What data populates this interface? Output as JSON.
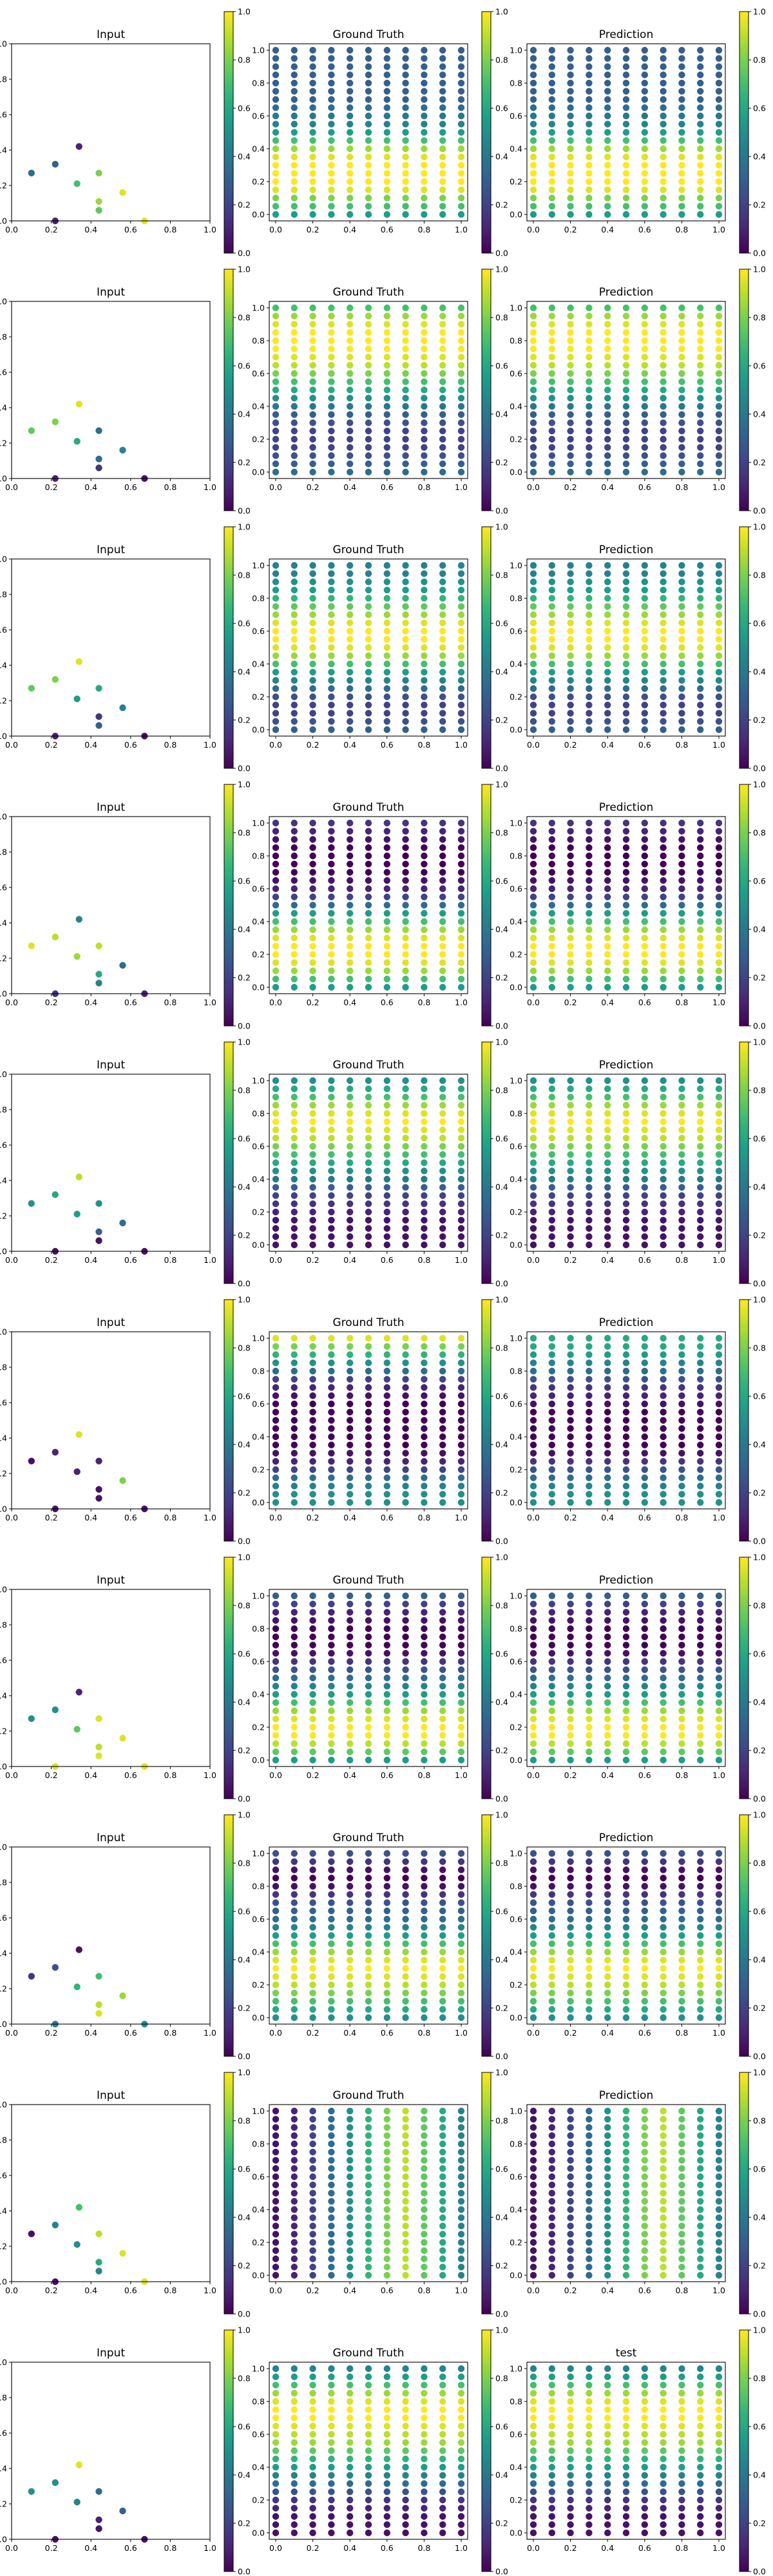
{
  "figure": {
    "rows": 10,
    "columns": [
      "Input",
      "Ground Truth",
      "Prediction"
    ],
    "colormap": "viridis",
    "colorbar_ticks": [
      "0.0",
      "0.2",
      "0.4",
      "0.6",
      "0.8",
      "1.0"
    ],
    "axis_ticks": [
      "0.0",
      "0.2",
      "0.4",
      "0.6",
      "0.8",
      "1.0"
    ],
    "grid_x": [
      0.0,
      0.1,
      0.2,
      0.3,
      0.4,
      0.5,
      0.6,
      0.7,
      0.8,
      0.9,
      1.0
    ],
    "grid_y": [
      0.0,
      0.05,
      0.1,
      0.15,
      0.2,
      0.25,
      0.3,
      0.35,
      0.4,
      0.45,
      0.5,
      0.55,
      0.6,
      0.65,
      0.7,
      0.75,
      0.8,
      0.85,
      0.9,
      0.95,
      1.0
    ],
    "input_points_xy": [
      [
        0.1,
        0.27
      ],
      [
        0.22,
        0.32
      ],
      [
        0.34,
        0.42
      ],
      [
        0.22,
        0.0
      ],
      [
        0.33,
        0.21
      ],
      [
        0.44,
        0.27
      ],
      [
        0.44,
        0.11
      ],
      [
        0.44,
        0.06
      ],
      [
        0.56,
        0.16
      ],
      [
        0.67,
        0.0
      ]
    ]
  },
  "chart_data": [
    {
      "type": "scatter",
      "row": 1,
      "title": "Input",
      "input_values": [
        0.35,
        0.3,
        0.1,
        0.1,
        0.7,
        0.8,
        0.85,
        0.75,
        0.95,
        0.95
      ],
      "xlim": [
        0,
        1
      ],
      "ylim": [
        0,
        1
      ],
      "colorbar": [
        0,
        1
      ]
    },
    {
      "type": "scatter",
      "row": 1,
      "title": "Ground Truth",
      "row_values": [
        0.55,
        0.7,
        0.8,
        0.95,
        1,
        1,
        1,
        0.95,
        0.85,
        0.7,
        0.55,
        0.45,
        0.4,
        0.35,
        0.3,
        0.3,
        0.3,
        0.3,
        0.3,
        0.3,
        0.3
      ],
      "xlim": [
        0,
        1
      ],
      "ylim": [
        0,
        1
      ],
      "colorbar": [
        0,
        1
      ]
    },
    {
      "type": "scatter",
      "row": 1,
      "title": "Prediction",
      "row_values": [
        0.55,
        0.7,
        0.8,
        0.95,
        1,
        1,
        1,
        0.95,
        0.85,
        0.7,
        0.55,
        0.45,
        0.4,
        0.35,
        0.3,
        0.3,
        0.3,
        0.3,
        0.3,
        0.3,
        0.3
      ],
      "xlim": [
        0,
        1
      ],
      "ylim": [
        0,
        1
      ],
      "colorbar": [
        0,
        1
      ]
    },
    {
      "type": "scatter",
      "row": 2,
      "title": "Input",
      "input_values": [
        0.75,
        0.8,
        0.95,
        0.1,
        0.6,
        0.35,
        0.35,
        0.15,
        0.45,
        0.05
      ],
      "xlim": [
        0,
        1
      ],
      "ylim": [
        0,
        1
      ],
      "colorbar": [
        0,
        1
      ]
    },
    {
      "type": "scatter",
      "row": 2,
      "title": "Ground Truth",
      "row_values": [
        0.35,
        0.3,
        0.25,
        0.2,
        0.2,
        0.2,
        0.25,
        0.3,
        0.4,
        0.5,
        0.6,
        0.7,
        0.8,
        0.9,
        0.95,
        1,
        1,
        1,
        0.95,
        0.85,
        0.7
      ],
      "xlim": [
        0,
        1
      ],
      "ylim": [
        0,
        1
      ],
      "colorbar": [
        0,
        1
      ]
    },
    {
      "type": "scatter",
      "row": 2,
      "title": "Prediction",
      "row_values": [
        0.35,
        0.3,
        0.25,
        0.2,
        0.2,
        0.2,
        0.25,
        0.3,
        0.4,
        0.5,
        0.6,
        0.7,
        0.8,
        0.9,
        0.95,
        1,
        1,
        1,
        0.95,
        0.85,
        0.7
      ],
      "xlim": [
        0,
        1
      ],
      "ylim": [
        0,
        1
      ],
      "colorbar": [
        0,
        1
      ]
    },
    {
      "type": "scatter",
      "row": 3,
      "title": "Input",
      "input_values": [
        0.75,
        0.8,
        0.95,
        0.1,
        0.55,
        0.6,
        0.15,
        0.3,
        0.45,
        0.05
      ],
      "xlim": [
        0,
        1
      ],
      "ylim": [
        0,
        1
      ],
      "colorbar": [
        0,
        1
      ]
    },
    {
      "type": "scatter",
      "row": 3,
      "title": "Ground Truth",
      "row_values": [
        0.3,
        0.25,
        0.2,
        0.2,
        0.25,
        0.35,
        0.45,
        0.55,
        0.7,
        0.85,
        0.95,
        1,
        1,
        0.95,
        0.85,
        0.75,
        0.65,
        0.55,
        0.5,
        0.45,
        0.45
      ],
      "xlim": [
        0,
        1
      ],
      "ylim": [
        0,
        1
      ],
      "colorbar": [
        0,
        1
      ]
    },
    {
      "type": "scatter",
      "row": 3,
      "title": "Prediction",
      "row_values": [
        0.3,
        0.25,
        0.2,
        0.2,
        0.25,
        0.35,
        0.45,
        0.55,
        0.7,
        0.85,
        0.95,
        1,
        1,
        0.95,
        0.85,
        0.75,
        0.65,
        0.55,
        0.5,
        0.45,
        0.45
      ],
      "xlim": [
        0,
        1
      ],
      "ylim": [
        0,
        1
      ],
      "colorbar": [
        0,
        1
      ]
    },
    {
      "type": "scatter",
      "row": 4,
      "title": "Input",
      "input_values": [
        0.95,
        0.9,
        0.45,
        0.15,
        0.85,
        0.9,
        0.6,
        0.45,
        0.35,
        0.1
      ],
      "xlim": [
        0,
        1
      ],
      "ylim": [
        0,
        1
      ],
      "colorbar": [
        0,
        1
      ]
    },
    {
      "type": "scatter",
      "row": 4,
      "title": "Ground Truth",
      "row_values": [
        0.55,
        0.7,
        0.85,
        0.95,
        1,
        1,
        0.95,
        0.85,
        0.7,
        0.55,
        0.35,
        0.2,
        0.1,
        0.05,
        0,
        0,
        0,
        0,
        0.05,
        0.1,
        0.15
      ],
      "xlim": [
        0,
        1
      ],
      "ylim": [
        0,
        1
      ],
      "colorbar": [
        0,
        1
      ]
    },
    {
      "type": "scatter",
      "row": 4,
      "title": "Prediction",
      "row_values": [
        0.55,
        0.7,
        0.85,
        0.95,
        1,
        1,
        0.95,
        0.85,
        0.7,
        0.55,
        0.35,
        0.2,
        0.1,
        0.05,
        0,
        0,
        0,
        0,
        0.05,
        0.1,
        0.15
      ],
      "xlim": [
        0,
        1
      ],
      "ylim": [
        0,
        1
      ],
      "colorbar": [
        0,
        1
      ]
    },
    {
      "type": "scatter",
      "row": 5,
      "title": "Input",
      "input_values": [
        0.5,
        0.6,
        0.9,
        0.05,
        0.55,
        0.5,
        0.3,
        0.05,
        0.35,
        0.05
      ],
      "xlim": [
        0,
        1
      ],
      "ylim": [
        0,
        1
      ],
      "colorbar": [
        0,
        1
      ]
    },
    {
      "type": "scatter",
      "row": 5,
      "title": "Ground Truth",
      "row_values": [
        0.05,
        0.05,
        0.05,
        0.05,
        0.1,
        0.15,
        0.2,
        0.3,
        0.4,
        0.5,
        0.6,
        0.7,
        0.8,
        0.9,
        0.95,
        1,
        0.95,
        0.85,
        0.7,
        0.6,
        0.5
      ],
      "xlim": [
        0,
        1
      ],
      "ylim": [
        0,
        1
      ],
      "colorbar": [
        0,
        1
      ]
    },
    {
      "type": "scatter",
      "row": 5,
      "title": "Prediction",
      "row_values": [
        0.05,
        0.05,
        0.05,
        0.05,
        0.1,
        0.15,
        0.2,
        0.3,
        0.4,
        0.5,
        0.6,
        0.7,
        0.8,
        0.9,
        0.95,
        1,
        0.95,
        0.85,
        0.7,
        0.6,
        0.5
      ],
      "xlim": [
        0,
        1
      ],
      "ylim": [
        0,
        1
      ],
      "colorbar": [
        0,
        1
      ]
    },
    {
      "type": "scatter",
      "row": 6,
      "title": "Input",
      "input_values": [
        0.05,
        0.1,
        0.95,
        0.05,
        0.1,
        0.1,
        0.05,
        0.05,
        0.8,
        0.05
      ],
      "xlim": [
        0,
        1
      ],
      "ylim": [
        0,
        1
      ],
      "colorbar": [
        0,
        1
      ]
    },
    {
      "type": "scatter",
      "row": 6,
      "title": "Ground Truth",
      "row_values": [
        0.5,
        0.5,
        0.45,
        0.35,
        0.2,
        0.1,
        0.05,
        0,
        0,
        0,
        0,
        0,
        0,
        0.05,
        0.1,
        0.2,
        0.35,
        0.5,
        0.65,
        0.8,
        0.95
      ],
      "xlim": [
        0,
        1
      ],
      "ylim": [
        0,
        1
      ],
      "colorbar": [
        0,
        1
      ]
    },
    {
      "type": "scatter",
      "row": 6,
      "title": "Prediction",
      "row_values": [
        0.5,
        0.5,
        0.45,
        0.35,
        0.25,
        0.15,
        0.05,
        0,
        0,
        0,
        0,
        0,
        0.05,
        0.1,
        0.15,
        0.25,
        0.35,
        0.45,
        0.55,
        0.6,
        0.6
      ],
      "xlim": [
        0,
        1
      ],
      "ylim": [
        0,
        1
      ],
      "colorbar": [
        0,
        1
      ]
    },
    {
      "type": "scatter",
      "row": 7,
      "title": "Input",
      "input_values": [
        0.5,
        0.5,
        0.1,
        0.95,
        0.75,
        0.95,
        0.9,
        0.95,
        0.95,
        0.95
      ],
      "xlim": [
        0,
        1
      ],
      "ylim": [
        0,
        1
      ],
      "colorbar": [
        0,
        1
      ]
    },
    {
      "type": "scatter",
      "row": 7,
      "title": "Ground Truth",
      "row_values": [
        0.55,
        0.75,
        0.9,
        1,
        1,
        0.95,
        0.85,
        0.7,
        0.55,
        0.45,
        0.35,
        0.25,
        0.15,
        0.05,
        0,
        0,
        0,
        0.05,
        0.1,
        0.2,
        0.3
      ],
      "xlim": [
        0,
        1
      ],
      "ylim": [
        0,
        1
      ],
      "colorbar": [
        0,
        1
      ]
    },
    {
      "type": "scatter",
      "row": 7,
      "title": "Prediction",
      "row_values": [
        0.55,
        0.75,
        0.9,
        1,
        1,
        0.95,
        0.85,
        0.7,
        0.55,
        0.45,
        0.35,
        0.25,
        0.15,
        0.05,
        0,
        0,
        0,
        0.05,
        0.1,
        0.2,
        0.3
      ],
      "xlim": [
        0,
        1
      ],
      "ylim": [
        0,
        1
      ],
      "colorbar": [
        0,
        1
      ]
    },
    {
      "type": "scatter",
      "row": 8,
      "title": "Input",
      "input_values": [
        0.15,
        0.25,
        0.05,
        0.45,
        0.65,
        0.7,
        0.9,
        0.95,
        0.85,
        0.5
      ],
      "xlim": [
        0,
        1
      ],
      "ylim": [
        0,
        1
      ],
      "colorbar": [
        0,
        1
      ]
    },
    {
      "type": "scatter",
      "row": 8,
      "title": "Ground Truth",
      "row_values": [
        0.5,
        0.6,
        0.7,
        0.8,
        0.9,
        0.95,
        1,
        0.95,
        0.85,
        0.7,
        0.55,
        0.45,
        0.35,
        0.3,
        0.25,
        0.15,
        0.05,
        0,
        0.05,
        0.15,
        0.25
      ],
      "xlim": [
        0,
        1
      ],
      "ylim": [
        0,
        1
      ],
      "colorbar": [
        0,
        1
      ]
    },
    {
      "type": "scatter",
      "row": 8,
      "title": "Prediction",
      "row_values": [
        0.5,
        0.6,
        0.7,
        0.8,
        0.9,
        0.95,
        1,
        0.95,
        0.85,
        0.7,
        0.55,
        0.45,
        0.35,
        0.3,
        0.25,
        0.15,
        0.05,
        0,
        0.05,
        0.15,
        0.25
      ],
      "xlim": [
        0,
        1
      ],
      "ylim": [
        0,
        1
      ],
      "colorbar": [
        0,
        1
      ]
    },
    {
      "type": "scatter",
      "row": 9,
      "title": "Input",
      "input_values": [
        0.05,
        0.45,
        0.7,
        0.05,
        0.5,
        0.9,
        0.6,
        0.45,
        0.95,
        0.95
      ],
      "xlim": [
        0,
        1
      ],
      "ylim": [
        0,
        1
      ],
      "colorbar": [
        0,
        1
      ]
    },
    {
      "type": "scatter",
      "row": 9,
      "title": "Ground Truth",
      "column_values": [
        0.05,
        0.1,
        0.2,
        0.35,
        0.5,
        0.65,
        0.8,
        0.9,
        0.75,
        0.6,
        0.45
      ],
      "xlim": [
        0,
        1
      ],
      "ylim": [
        0,
        1
      ],
      "colorbar": [
        0,
        1
      ]
    },
    {
      "type": "scatter",
      "row": 9,
      "title": "Prediction",
      "column_values": [
        0.05,
        0.1,
        0.2,
        0.35,
        0.5,
        0.65,
        0.8,
        0.9,
        0.75,
        0.6,
        0.45
      ],
      "xlim": [
        0,
        1
      ],
      "ylim": [
        0,
        1
      ],
      "colorbar": [
        0,
        1
      ]
    },
    {
      "type": "scatter",
      "row": 10,
      "title": "Input",
      "input_values": [
        0.5,
        0.5,
        0.95,
        0.05,
        0.45,
        0.35,
        0.1,
        0.05,
        0.3,
        0.05
      ],
      "xlim": [
        0,
        1
      ],
      "ylim": [
        0,
        1
      ],
      "colorbar": [
        0,
        1
      ]
    },
    {
      "type": "scatter",
      "row": 10,
      "title": "Ground Truth",
      "row_values": [
        0.05,
        0.05,
        0.05,
        0.1,
        0.15,
        0.25,
        0.35,
        0.45,
        0.55,
        0.65,
        0.75,
        0.85,
        0.9,
        0.95,
        1,
        1,
        0.95,
        0.85,
        0.7,
        0.55,
        0.45
      ],
      "xlim": [
        0,
        1
      ],
      "ylim": [
        0,
        1
      ],
      "colorbar": [
        0,
        1
      ]
    },
    {
      "type": "scatter",
      "row": 10,
      "title": "test",
      "row_values": [
        0.05,
        0.05,
        0.05,
        0.1,
        0.15,
        0.25,
        0.35,
        0.45,
        0.55,
        0.65,
        0.75,
        0.85,
        0.9,
        0.95,
        1,
        1,
        0.95,
        0.85,
        0.7,
        0.55,
        0.45
      ],
      "xlim": [
        0,
        1
      ],
      "ylim": [
        0,
        1
      ],
      "colorbar": [
        0,
        1
      ]
    }
  ]
}
